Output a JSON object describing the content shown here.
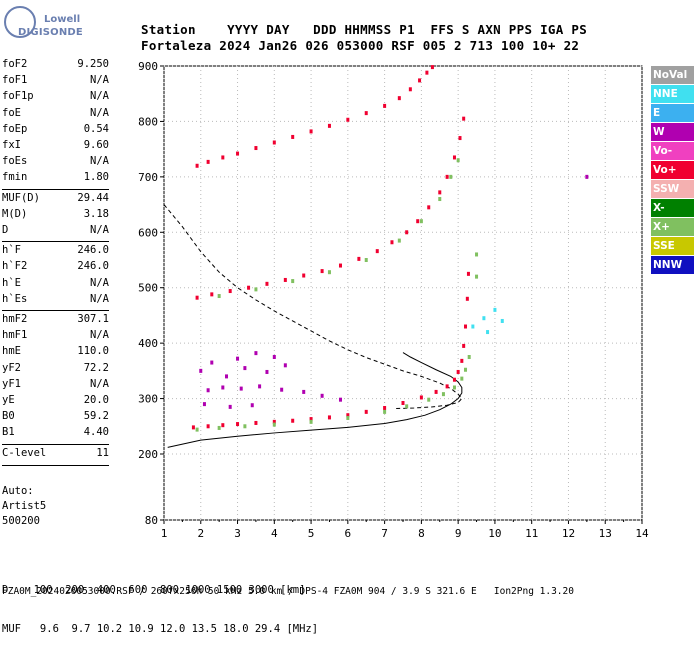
{
  "logo": {
    "line1": "Lowell",
    "line2": "DIGISONDE"
  },
  "header": {
    "line1": "Station    YYYY DAY   DDD HHMMSS P1  FFS S AXN PPS IGA PS",
    "line2": "Fortaleza 2024 Jan26 026 053000 RSF 005 2 713 100 10+ 22"
  },
  "params": [
    {
      "label": "foF2",
      "value": "9.250"
    },
    {
      "label": "foF1",
      "value": "N/A"
    },
    {
      "label": "foF1p",
      "value": "N/A"
    },
    {
      "label": "foE",
      "value": "N/A"
    },
    {
      "label": "foEp",
      "value": "0.54"
    },
    {
      "label": "fxI",
      "value": "9.60"
    },
    {
      "label": "foEs",
      "value": "N/A"
    },
    {
      "label": "fmin",
      "value": "1.80"
    },
    {
      "label": "MUF(D)",
      "value": "29.44"
    },
    {
      "label": "M(D)",
      "value": "3.18"
    },
    {
      "label": "D",
      "value": "N/A"
    },
    {
      "label": "h`F",
      "value": "246.0"
    },
    {
      "label": "h`F2",
      "value": "246.0"
    },
    {
      "label": "h`E",
      "value": "N/A"
    },
    {
      "label": "h`Es",
      "value": "N/A"
    },
    {
      "label": "hmF2",
      "value": "307.1"
    },
    {
      "label": "hmF1",
      "value": "N/A"
    },
    {
      "label": "hmE",
      "value": "110.0"
    },
    {
      "label": "yF2",
      "value": "72.2"
    },
    {
      "label": "yF1",
      "value": "N/A"
    },
    {
      "label": "yE",
      "value": "20.0"
    },
    {
      "label": "B0",
      "value": "59.2"
    },
    {
      "label": "B1",
      "value": "4.40"
    },
    {
      "label": "C-level",
      "value": "11"
    }
  ],
  "auto": {
    "line1": "Auto:",
    "line2": "Artist5",
    "line3": "500200"
  },
  "legend": [
    {
      "label": "NoVal",
      "color": "#a0a0a0"
    },
    {
      "label": "NNE",
      "color": "#40e0f0"
    },
    {
      "label": "E",
      "color": "#3cb0f0"
    },
    {
      "label": "W",
      "color": "#b000b0"
    },
    {
      "label": "Vo-",
      "color": "#f040c0"
    },
    {
      "label": "Vo+",
      "color": "#f00030"
    },
    {
      "label": "SSW",
      "color": "#f4b0b0"
    },
    {
      "label": "X-",
      "color": "#008000"
    },
    {
      "label": "X+",
      "color": "#80c060"
    },
    {
      "label": "SSE",
      "color": "#c8c800"
    },
    {
      "label": "NNW",
      "color": "#1010c0"
    }
  ],
  "bottom": {
    "row1": "D    100  200  400  600  800 1000 1500 3000 [km]",
    "row2": "MUF   9.6  9.7 10.2 10.9 12.0 13.5 18.0 29.4 [MHz]"
  },
  "footer": "FZA0M_2024026053000.RSF / 260fx256h 50 kHz 5.0 km / DPS-4 FZA0M 904 / 3.9 S 321.6 E   Ion2Png 1.3.20",
  "chart_data": {
    "type": "scatter",
    "xlim": [
      1,
      14
    ],
    "ylim": [
      80,
      900
    ],
    "x_ticks": [
      "1",
      "2",
      "3",
      "4",
      "5",
      "6",
      "7",
      "8",
      "9",
      "10",
      "11",
      "12",
      "13",
      "14"
    ],
    "y_ticks": [
      "80",
      "200",
      "300",
      "400",
      "500",
      "600",
      "700",
      "800",
      "900"
    ],
    "grid": "dotted",
    "series": [
      {
        "color": "#f00030",
        "points": [
          [
            1.8,
            248
          ],
          [
            2.2,
            250
          ],
          [
            2.6,
            252
          ],
          [
            3.0,
            254
          ],
          [
            3.5,
            256
          ],
          [
            4.0,
            258
          ],
          [
            4.5,
            260
          ],
          [
            5.0,
            263
          ],
          [
            5.5,
            266
          ],
          [
            6.0,
            270
          ],
          [
            6.5,
            276
          ],
          [
            7.0,
            283
          ],
          [
            7.5,
            292
          ],
          [
            8.0,
            302
          ],
          [
            8.4,
            312
          ],
          [
            8.7,
            322
          ],
          [
            8.9,
            334
          ],
          [
            9.0,
            348
          ],
          [
            9.1,
            368
          ],
          [
            9.15,
            395
          ],
          [
            9.2,
            430
          ],
          [
            9.25,
            480
          ],
          [
            9.28,
            525
          ]
        ]
      },
      {
        "color": "#80c060",
        "points": [
          [
            1.9,
            244
          ],
          [
            2.5,
            247
          ],
          [
            3.2,
            250
          ],
          [
            4.0,
            253
          ],
          [
            5.0,
            258
          ],
          [
            6.0,
            265
          ],
          [
            7.0,
            276
          ],
          [
            7.6,
            286
          ],
          [
            8.2,
            298
          ],
          [
            8.6,
            308
          ],
          [
            8.9,
            320
          ],
          [
            9.1,
            336
          ],
          [
            9.2,
            352
          ],
          [
            9.3,
            375
          ],
          [
            9.5,
            520
          ],
          [
            9.5,
            560
          ]
        ]
      },
      {
        "color": "#f00030",
        "points": [
          [
            1.9,
            482
          ],
          [
            2.3,
            488
          ],
          [
            2.8,
            494
          ],
          [
            3.3,
            500
          ],
          [
            3.8,
            507
          ],
          [
            4.3,
            514
          ],
          [
            4.8,
            522
          ],
          [
            5.3,
            530
          ],
          [
            5.8,
            540
          ],
          [
            6.3,
            552
          ],
          [
            6.8,
            566
          ],
          [
            7.2,
            582
          ],
          [
            7.6,
            600
          ],
          [
            7.9,
            620
          ],
          [
            8.2,
            645
          ],
          [
            8.5,
            672
          ],
          [
            8.7,
            700
          ],
          [
            8.9,
            735
          ],
          [
            9.05,
            770
          ],
          [
            9.15,
            805
          ]
        ]
      },
      {
        "color": "#80c060",
        "points": [
          [
            2.5,
            485
          ],
          [
            3.5,
            497
          ],
          [
            4.5,
            512
          ],
          [
            5.5,
            528
          ],
          [
            6.5,
            550
          ],
          [
            7.4,
            585
          ],
          [
            8.0,
            620
          ],
          [
            8.5,
            660
          ],
          [
            8.8,
            700
          ],
          [
            9.0,
            730
          ]
        ]
      },
      {
        "color": "#f00030",
        "points": [
          [
            1.9,
            720
          ],
          [
            2.2,
            727
          ],
          [
            2.6,
            735
          ],
          [
            3.0,
            742
          ],
          [
            3.5,
            752
          ],
          [
            4.0,
            762
          ],
          [
            4.5,
            772
          ],
          [
            5.0,
            782
          ],
          [
            5.5,
            792
          ],
          [
            6.0,
            803
          ],
          [
            6.5,
            815
          ],
          [
            7.0,
            828
          ],
          [
            7.4,
            842
          ],
          [
            7.7,
            858
          ],
          [
            7.95,
            874
          ],
          [
            8.15,
            888
          ],
          [
            8.3,
            898
          ]
        ]
      },
      {
        "color": "#b000b0",
        "points": [
          [
            2.0,
            350
          ],
          [
            2.3,
            365
          ],
          [
            2.7,
            340
          ],
          [
            3.0,
            372
          ],
          [
            3.2,
            355
          ],
          [
            3.5,
            382
          ],
          [
            3.8,
            348
          ],
          [
            4.0,
            375
          ],
          [
            4.3,
            360
          ],
          [
            2.2,
            315
          ],
          [
            2.6,
            320
          ],
          [
            3.1,
            318
          ],
          [
            3.6,
            322
          ],
          [
            4.2,
            316
          ],
          [
            4.8,
            312
          ],
          [
            5.3,
            305
          ],
          [
            5.8,
            298
          ],
          [
            2.1,
            290
          ],
          [
            2.8,
            285
          ],
          [
            3.4,
            288
          ],
          [
            12.5,
            700
          ]
        ]
      },
      {
        "color": "#40e0f0",
        "points": [
          [
            9.4,
            430
          ],
          [
            9.7,
            445
          ],
          [
            9.8,
            420
          ],
          [
            10.0,
            460
          ],
          [
            10.2,
            440
          ]
        ]
      }
    ],
    "curves": [
      {
        "name": "",
        "style": "solid",
        "x": [
          1.1,
          2.0,
          3.0,
          4.0,
          5.0,
          6.0,
          7.0,
          7.6,
          8.1,
          8.5,
          8.8,
          9.0,
          9.1,
          9.1,
          9.0,
          8.8,
          8.4,
          8.0,
          7.7,
          7.5
        ],
        "y": [
          212,
          225,
          232,
          238,
          243,
          248,
          255,
          262,
          270,
          280,
          290,
          300,
          310,
          320,
          330,
          340,
          352,
          365,
          375,
          383
        ]
      },
      {
        "name": "",
        "style": "dashed",
        "x": [
          1.0,
          1.5,
          2.0,
          2.5,
          3.0,
          3.5,
          4.0,
          4.5,
          5.0,
          5.5,
          6.0,
          6.5,
          7.0,
          7.5,
          8.0,
          8.5,
          8.8,
          9.0,
          9.1,
          9.0,
          8.7,
          8.3,
          7.8,
          7.3
        ],
        "y": [
          650,
          610,
          565,
          528,
          500,
          478,
          458,
          440,
          422,
          404,
          388,
          374,
          362,
          350,
          340,
          328,
          318,
          308,
          300,
          293,
          288,
          285,
          283,
          282
        ]
      }
    ]
  }
}
